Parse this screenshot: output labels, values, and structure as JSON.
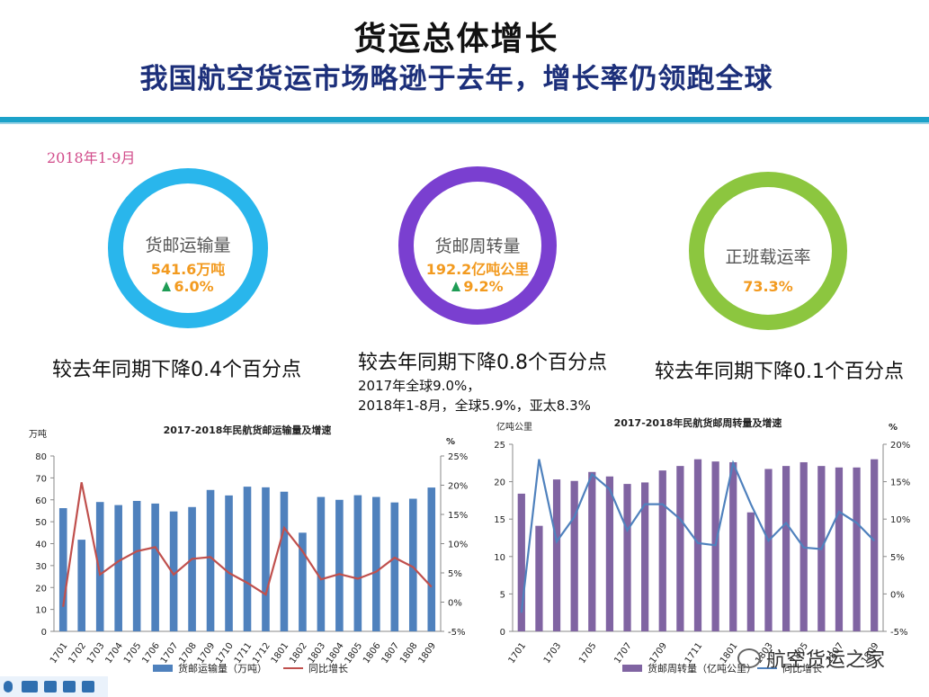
{
  "header": {
    "title": "货运总体增长",
    "subtitle": "我国航空货运市场略逊于去年，增长率仍领跑全球"
  },
  "period": "2018年1-9月",
  "kpis": [
    {
      "label": "货邮运输量",
      "value": "541.6万吨",
      "growth": "6.0%",
      "color": "#29b6ec",
      "note": "较去年同期下降0.4个百分点"
    },
    {
      "label": "货邮周转量",
      "value": "192.2亿吨公里",
      "growth": "9.2%",
      "color": "#7a3fd0",
      "note": "较去年同期下降0.8个百分点"
    },
    {
      "label": "正班载运率",
      "value": "73.3%",
      "color": "#8cc63f",
      "note": "较去年同期下降0.1个百分点"
    }
  ],
  "extra_notes": [
    "2017年全球9.0%，",
    "2018年1-8月，全球5.9%，亚太8.3%"
  ],
  "watermark": "航空货运之家",
  "chart_data": [
    {
      "type": "bar",
      "title": "2017-2018年民航货邮运输量及增速",
      "ylabel": "万吨",
      "y2label": "%",
      "categories": [
        "1701",
        "1702",
        "1703",
        "1704",
        "1705",
        "1706",
        "1707",
        "1708",
        "1709",
        "1710",
        "1711",
        "1712",
        "1801",
        "1802",
        "1803",
        "1804",
        "1805",
        "1806",
        "1807",
        "1808",
        "1809"
      ],
      "x_tick_labels": [
        "1701",
        "1702",
        "1703",
        "1704",
        "1705",
        "1706",
        "1707",
        "1708",
        "1709",
        "1710",
        "1711",
        "1712",
        "1801",
        "1802",
        "1803",
        "1804",
        "1805",
        "1806",
        "1807",
        "1808",
        "1809"
      ],
      "y_ticks": [
        "0",
        "10",
        "20",
        "30",
        "40",
        "50",
        "60",
        "70",
        "80"
      ],
      "y2_ticks": [
        "-5%",
        "0%",
        "5%",
        "10%",
        "15%",
        "20%",
        "25%"
      ],
      "ylim": [
        0,
        80
      ],
      "y2lim": [
        -5,
        25
      ],
      "series": [
        {
          "name": "货邮运输量（万吨）",
          "kind": "bar",
          "color": "#4f81bd",
          "values": [
            56.2,
            41.8,
            59.0,
            57.6,
            59.5,
            58.3,
            54.7,
            56.7,
            64.5,
            62.0,
            66.0,
            65.7,
            63.7,
            45.0,
            61.3,
            60.0,
            62.1,
            61.3,
            58.8,
            60.5,
            65.6
          ]
        },
        {
          "name": "同比增长",
          "kind": "line",
          "axis": "right",
          "color": "#c0504d",
          "values": [
            -0.8,
            20.5,
            4.7,
            7.0,
            8.7,
            9.4,
            4.7,
            7.4,
            7.7,
            5.0,
            3.3,
            1.3,
            12.7,
            8.7,
            3.9,
            4.8,
            4.0,
            5.2,
            7.6,
            6.0,
            2.6
          ]
        }
      ]
    },
    {
      "type": "bar",
      "title": "2017-2018年民航货邮周转量及增速",
      "ylabel": "亿吨公里",
      "y2label": "%",
      "categories": [
        "1701",
        "1702",
        "1703",
        "1704",
        "1705",
        "1706",
        "1707",
        "1708",
        "1709",
        "1710",
        "1711",
        "1712",
        "1801",
        "1802",
        "1803",
        "1804",
        "1805",
        "1806",
        "1807",
        "1808",
        "1809"
      ],
      "x_tick_labels": [
        "1701",
        "1703",
        "1705",
        "1707",
        "1709",
        "1711",
        "1801",
        "1803",
        "1805",
        "1807",
        "1809"
      ],
      "y_ticks": [
        "0",
        "5",
        "10",
        "15",
        "20",
        "25"
      ],
      "y2_ticks": [
        "-5%",
        "0%",
        "5%",
        "10%",
        "15%",
        "20%"
      ],
      "ylim": [
        0,
        25
      ],
      "y2lim": [
        -5,
        20
      ],
      "series": [
        {
          "name": "货邮周转量（亿吨公里）",
          "kind": "bar",
          "color": "#8064a2",
          "values": [
            18.4,
            14.1,
            20.3,
            20.1,
            21.3,
            20.7,
            19.7,
            19.9,
            21.5,
            22.1,
            23.0,
            22.7,
            22.6,
            15.9,
            21.7,
            22.1,
            22.6,
            22.1,
            21.9,
            21.9,
            23.0
          ]
        },
        {
          "name": "同比增长",
          "kind": "line",
          "axis": "right",
          "color": "#4f81bd",
          "values": [
            -2.5,
            18.0,
            7.0,
            10.3,
            16.0,
            14.0,
            8.5,
            12.0,
            12.0,
            10.0,
            6.8,
            6.5,
            17.5,
            12.0,
            7.1,
            9.5,
            6.2,
            6.0,
            11.0,
            9.5,
            7.1
          ]
        }
      ]
    }
  ]
}
